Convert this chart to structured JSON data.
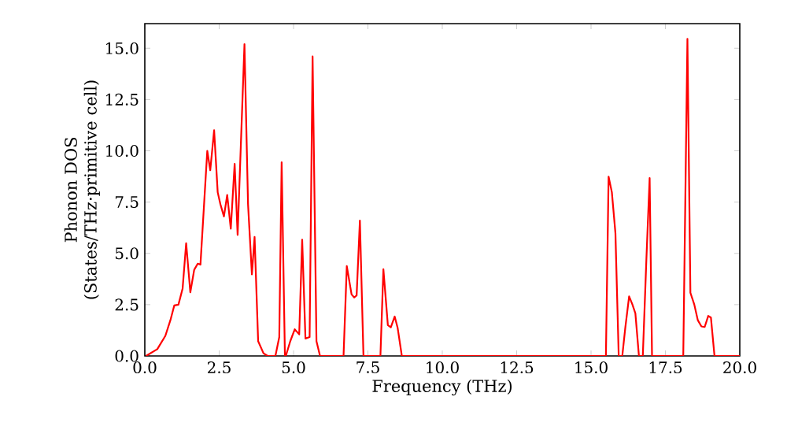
{
  "chart_data": {
    "type": "line",
    "xlabel": "Frequency (THz)",
    "ylabel": "Phonon DOS (States/THz·primitive cell)",
    "xlim": [
      0,
      20
    ],
    "ylim": [
      0,
      16.2
    ],
    "xticks": [
      {
        "value": 0,
        "label": "0.0"
      },
      {
        "value": 2.5,
        "label": "2.5"
      },
      {
        "value": 5,
        "label": "5.0"
      },
      {
        "value": 7.5,
        "label": "7.5"
      },
      {
        "value": 10,
        "label": "10.0"
      },
      {
        "value": 12.5,
        "label": "12.5"
      },
      {
        "value": 15,
        "label": "15.0"
      },
      {
        "value": 17.5,
        "label": "17.5"
      },
      {
        "value": 20,
        "label": "20.0"
      }
    ],
    "yticks": [
      {
        "value": 0,
        "label": "0.0"
      },
      {
        "value": 2.5,
        "label": "2.5"
      },
      {
        "value": 5,
        "label": "5.0"
      },
      {
        "value": 7.5,
        "label": "7.5"
      },
      {
        "value": 10,
        "label": "10.0"
      },
      {
        "value": 12.5,
        "label": "12.5"
      },
      {
        "value": 15,
        "label": "15.0"
      }
    ],
    "series": [
      {
        "color": "#ff0000",
        "x": [
          0.04,
          0.42,
          0.69,
          0.86,
          0.99,
          1.13,
          1.27,
          1.39,
          1.53,
          1.66,
          1.78,
          1.87,
          2.1,
          2.2,
          2.33,
          2.45,
          2.54,
          2.66,
          2.77,
          2.89,
          3.02,
          3.12,
          3.35,
          3.47,
          3.6,
          3.69,
          3.81,
          3.99,
          4.13,
          4.39,
          4.52,
          4.6,
          4.71,
          4.74,
          4.89,
          5.04,
          5.19,
          5.29,
          5.4,
          5.54,
          5.64,
          5.77,
          5.89,
          6.68,
          6.79,
          6.95,
          7.04,
          7.12,
          7.23,
          7.35,
          7.92,
          8.02,
          8.17,
          8.27,
          8.4,
          8.5,
          8.64,
          15.5,
          15.59,
          15.7,
          15.82,
          15.93,
          16.05,
          16.15,
          16.28,
          16.39,
          16.49,
          16.61,
          16.74,
          16.86,
          16.97,
          17.05,
          18.1,
          18.24,
          18.34,
          18.47,
          18.59,
          18.71,
          18.82,
          18.94,
          19.03,
          19.15,
          20
        ],
        "values": [
          0,
          0.33,
          0.98,
          1.74,
          2.46,
          2.5,
          3.28,
          5.5,
          3.1,
          4.2,
          4.5,
          4.45,
          10.0,
          9.05,
          11.0,
          7.98,
          7.4,
          6.8,
          7.85,
          6.2,
          9.36,
          5.9,
          15.2,
          7.4,
          3.98,
          5.8,
          0.72,
          0.13,
          0,
          0,
          0.92,
          9.44,
          0,
          0,
          0.72,
          1.3,
          1.05,
          5.67,
          0.85,
          0.92,
          14.6,
          0.72,
          0,
          0,
          4.38,
          3.0,
          2.85,
          2.95,
          6.6,
          0,
          0,
          4.23,
          1.5,
          1.4,
          1.92,
          1.36,
          0,
          0,
          8.74,
          7.98,
          5.98,
          0,
          0,
          1.36,
          2.9,
          2.51,
          2.08,
          0,
          0,
          4.69,
          8.67,
          0,
          0,
          15.46,
          3.08,
          2.51,
          1.74,
          1.44,
          1.41,
          1.95,
          1.87,
          0,
          0
        ]
      }
    ]
  }
}
